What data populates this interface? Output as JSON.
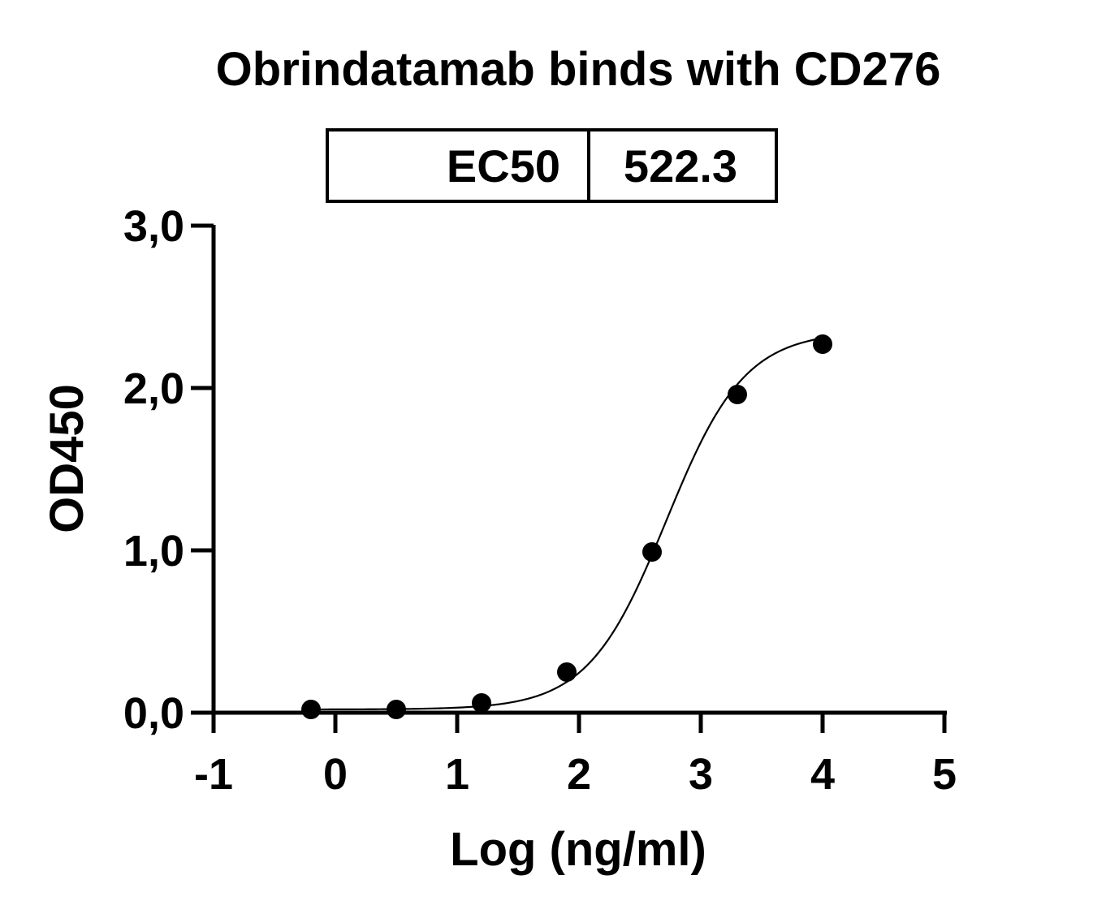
{
  "chart_data": {
    "type": "scatter",
    "title": "Obrindatamab binds with CD276",
    "xlabel": "Log (ng/ml)",
    "ylabel": "OD450",
    "xlim": [
      -1,
      5
    ],
    "ylim": [
      0,
      3
    ],
    "x_ticks": [
      "-1",
      "0",
      "1",
      "2",
      "3",
      "4",
      "5"
    ],
    "y_ticks": [
      "0,0",
      "1,0",
      "2,0",
      "3,0"
    ],
    "grid": false,
    "series": [
      {
        "x": [
          -0.2,
          0.5,
          1.2,
          1.9,
          2.6,
          3.3,
          4.0
        ],
        "y": [
          0.02,
          0.02,
          0.06,
          0.25,
          0.99,
          1.96,
          2.27
        ],
        "fit": "four-parameter logistic"
      }
    ],
    "fit_params": {
      "bottom": 0.02,
      "top": 2.35,
      "log_ec50": 2.718,
      "hill": 1.35
    },
    "ec50_table": {
      "label": "EC50",
      "value": "522.3"
    },
    "colors": {
      "points": "#000000",
      "curve": "#000000",
      "axes": "#000000"
    }
  }
}
